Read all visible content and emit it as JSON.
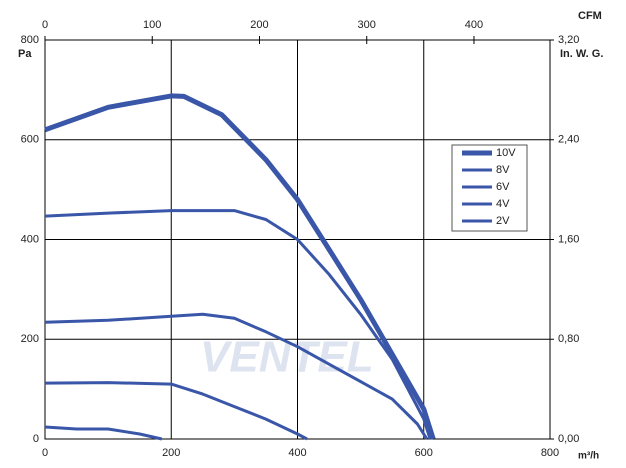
{
  "chart_data": {
    "type": "line",
    "xlabel": "m³/h",
    "ylabel": "Pa",
    "y2label": "In. W. G.",
    "x2label": "CFM",
    "watermark": "VENTEL",
    "xlim": [
      0,
      800
    ],
    "xticks": [
      0,
      200,
      400,
      600,
      800
    ],
    "ylim": [
      0,
      800
    ],
    "yticks": [
      0,
      200,
      400,
      600,
      800
    ],
    "x2lim": [
      0,
      470.9
    ],
    "x2ticks": [
      0,
      100,
      200,
      300,
      400
    ],
    "y2lim": [
      0,
      3.2
    ],
    "y2ticks": [
      {
        "value": 0,
        "label": "0,00"
      },
      {
        "value": 0.8,
        "label": "0,80"
      },
      {
        "value": 1.6,
        "label": "1,60"
      },
      {
        "value": 2.4,
        "label": "2,40"
      },
      {
        "value": 3.2,
        "label": "3,20"
      }
    ],
    "grid": true,
    "legend": "upper right",
    "series": [
      {
        "name": "10V",
        "color": "#3a56a8",
        "width": 5,
        "x": [
          0,
          100,
          200,
          220,
          280,
          350,
          400,
          450,
          500,
          550,
          600,
          615
        ],
        "values": [
          620,
          665,
          688,
          687,
          650,
          560,
          480,
          380,
          280,
          170,
          60,
          0
        ]
      },
      {
        "name": "8V",
        "color": "#3a56a8",
        "width": 3,
        "x": [
          0,
          100,
          200,
          300,
          350,
          400,
          450,
          500,
          550,
          600,
          610
        ],
        "values": [
          447,
          453,
          458,
          458,
          440,
          400,
          330,
          250,
          160,
          40,
          0
        ]
      },
      {
        "name": "6V",
        "color": "#3a56a8",
        "width": 3,
        "x": [
          0,
          100,
          200,
          250,
          300,
          350,
          400,
          450,
          500,
          550,
          590,
          605
        ],
        "values": [
          234,
          238,
          246,
          250,
          242,
          215,
          185,
          150,
          115,
          80,
          30,
          0
        ]
      },
      {
        "name": "4V",
        "color": "#3a56a8",
        "width": 3,
        "x": [
          0,
          100,
          200,
          250,
          300,
          350,
          400,
          415
        ],
        "values": [
          112,
          113,
          110,
          90,
          65,
          40,
          10,
          0
        ]
      },
      {
        "name": "2V",
        "color": "#3a56a8",
        "width": 3,
        "x": [
          0,
          50,
          100,
          150,
          185
        ],
        "values": [
          24,
          20,
          20,
          10,
          0
        ]
      }
    ]
  }
}
